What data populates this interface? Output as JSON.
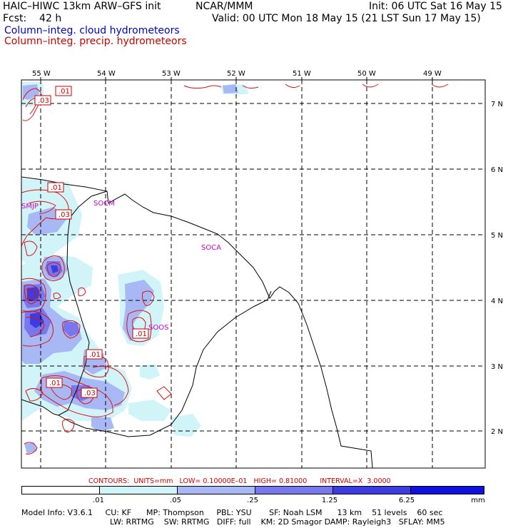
{
  "header": {
    "model": "HAIC–HIWC 13km ARW–GFS init",
    "org": "NCAR/MMM",
    "init": "Init: 06 UTC Sat 16 May 15",
    "fcst": "Fcst:    42 h",
    "valid": "Valid: 00 UTC Mon 18 May 15 (21 LST Sun 17 May 15)",
    "field1": "Column–integ. cloud hydrometeors",
    "field2": "Column–integ. precip. hydrometeors",
    "field1_color": "#0000cc",
    "field2_color": "#cc0000"
  },
  "map": {
    "lon_labels": [
      "55 W",
      "54 W",
      "53 W",
      "52 W",
      "51 W",
      "50 W",
      "49 W"
    ],
    "lat_labels": [
      "7 N",
      "6 N",
      "5 N",
      "4 N",
      "3 N",
      "2 N"
    ],
    "contour_labels": [
      ".01",
      ".03",
      ".01",
      ".03",
      ".01",
      ".01",
      ".01",
      ".03"
    ],
    "sites": [
      "SMJP",
      "SOCM",
      "SOCA",
      "SOOS"
    ]
  },
  "legend": {
    "contours_line": "CONTOURS:  UNITS=mm   LOW= 0.10000E–01   HIGH= 0.81000      INTERVAL=X  3.0000",
    "colorbar_labels": [
      ".01",
      ".05",
      ".25",
      "1.25",
      "6.25"
    ],
    "units": "mm",
    "colors": [
      "#ffffff",
      "#d0f4f8",
      "#a8b8f4",
      "#7878ec",
      "#3c3ce0",
      "#1010dc"
    ]
  },
  "model_info": {
    "line1": "Model Info: V3.6.1     CU: KF      MP: Thompson     PBL: YSU       SF: Noah LSM      13 km    51 levels    60 sec",
    "line2": "LW: RRTMG    SW: RRTMG   DIFF: full    KM: 2D Smagor DAMP: Rayleigh3   SFLAY: MM5"
  }
}
